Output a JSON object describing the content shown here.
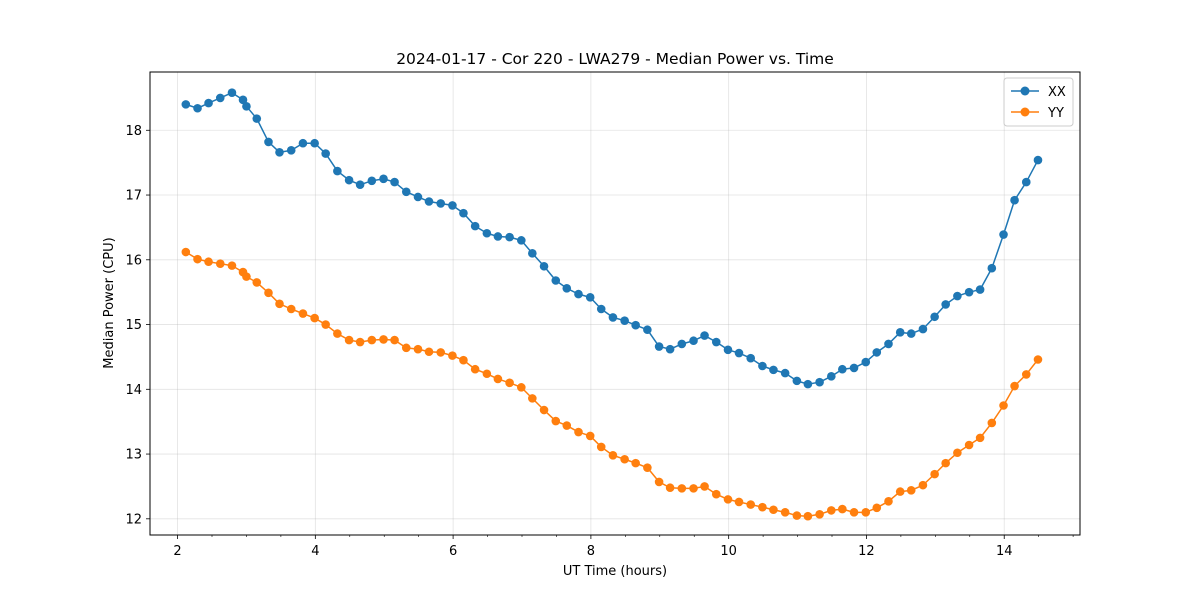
{
  "chart_data": {
    "type": "line",
    "title": "2024-01-17 - Cor 220 - LWA279 - Median Power vs. Time",
    "xlabel": "UT Time (hours)",
    "ylabel": "Median Power (CPU)",
    "xlim": [
      1.6,
      15.1
    ],
    "ylim": [
      11.75,
      18.9
    ],
    "xticks": [
      2,
      4,
      6,
      8,
      10,
      12,
      14
    ],
    "yticks": [
      12,
      13,
      14,
      15,
      16,
      17,
      18
    ],
    "xtick_labels": [
      "2",
      "4",
      "6",
      "8",
      "10",
      "12",
      "14"
    ],
    "ytick_labels": [
      "12",
      "13",
      "14",
      "15",
      "16",
      "17",
      "18"
    ],
    "grid": true,
    "legend_position": "top-right",
    "x": [
      2.12,
      2.29,
      2.45,
      2.62,
      2.79,
      2.95,
      3.0,
      3.15,
      3.32,
      3.48,
      3.65,
      3.82,
      3.99,
      4.15,
      4.32,
      4.49,
      4.65,
      4.82,
      4.99,
      5.15,
      5.32,
      5.49,
      5.65,
      5.82,
      5.99,
      6.15,
      6.32,
      6.49,
      6.65,
      6.82,
      6.99,
      7.15,
      7.32,
      7.49,
      7.65,
      7.82,
      7.99,
      8.15,
      8.32,
      8.49,
      8.65,
      8.82,
      8.99,
      9.15,
      9.32,
      9.49,
      9.65,
      9.82,
      9.99,
      10.15,
      10.32,
      10.49,
      10.65,
      10.82,
      10.99,
      11.15,
      11.32,
      11.49,
      11.65,
      11.82,
      11.99,
      12.15,
      12.32,
      12.49,
      12.65,
      12.82,
      12.99,
      13.15,
      13.32,
      13.49,
      13.65,
      13.82,
      13.99,
      14.15,
      14.32,
      14.49
    ],
    "series": [
      {
        "name": "XX",
        "color": "#1f77b4",
        "values": [
          18.4,
          18.34,
          18.42,
          18.5,
          18.58,
          18.47,
          18.37,
          18.18,
          17.82,
          17.66,
          17.69,
          17.8,
          17.8,
          17.64,
          17.37,
          17.23,
          17.16,
          17.22,
          17.25,
          17.2,
          17.05,
          16.97,
          16.9,
          16.87,
          16.84,
          16.72,
          16.52,
          16.41,
          16.36,
          16.35,
          16.3,
          16.1,
          15.9,
          15.68,
          15.56,
          15.47,
          15.42,
          15.24,
          15.11,
          15.06,
          14.99,
          14.92,
          14.66,
          14.62,
          14.7,
          14.75,
          14.83,
          14.73,
          14.61,
          14.56,
          14.48,
          14.36,
          14.3,
          14.25,
          14.13,
          14.08,
          14.11,
          14.2,
          14.31,
          14.33,
          14.42,
          14.57,
          14.7,
          14.88,
          14.86,
          14.93,
          15.12,
          15.31,
          15.44,
          15.5,
          15.54,
          15.87,
          16.39,
          16.92,
          17.2,
          17.54
        ]
      },
      {
        "name": "YY",
        "color": "#ff7f0e",
        "values": [
          16.12,
          16.01,
          15.97,
          15.94,
          15.91,
          15.81,
          15.74,
          15.65,
          15.49,
          15.32,
          15.24,
          15.17,
          15.1,
          15.0,
          14.86,
          14.76,
          14.73,
          14.76,
          14.77,
          14.76,
          14.64,
          14.62,
          14.58,
          14.57,
          14.52,
          14.45,
          14.31,
          14.24,
          14.16,
          14.1,
          14.03,
          13.86,
          13.68,
          13.51,
          13.44,
          13.34,
          13.28,
          13.11,
          12.98,
          12.92,
          12.86,
          12.79,
          12.57,
          12.48,
          12.47,
          12.47,
          12.5,
          12.38,
          12.3,
          12.26,
          12.22,
          12.18,
          12.14,
          12.1,
          12.05,
          12.04,
          12.07,
          12.13,
          12.15,
          12.1,
          12.1,
          12.17,
          12.27,
          12.42,
          12.44,
          12.52,
          12.69,
          12.86,
          13.02,
          13.14,
          13.25,
          13.48,
          13.75,
          14.05,
          14.23,
          14.46
        ]
      }
    ]
  }
}
